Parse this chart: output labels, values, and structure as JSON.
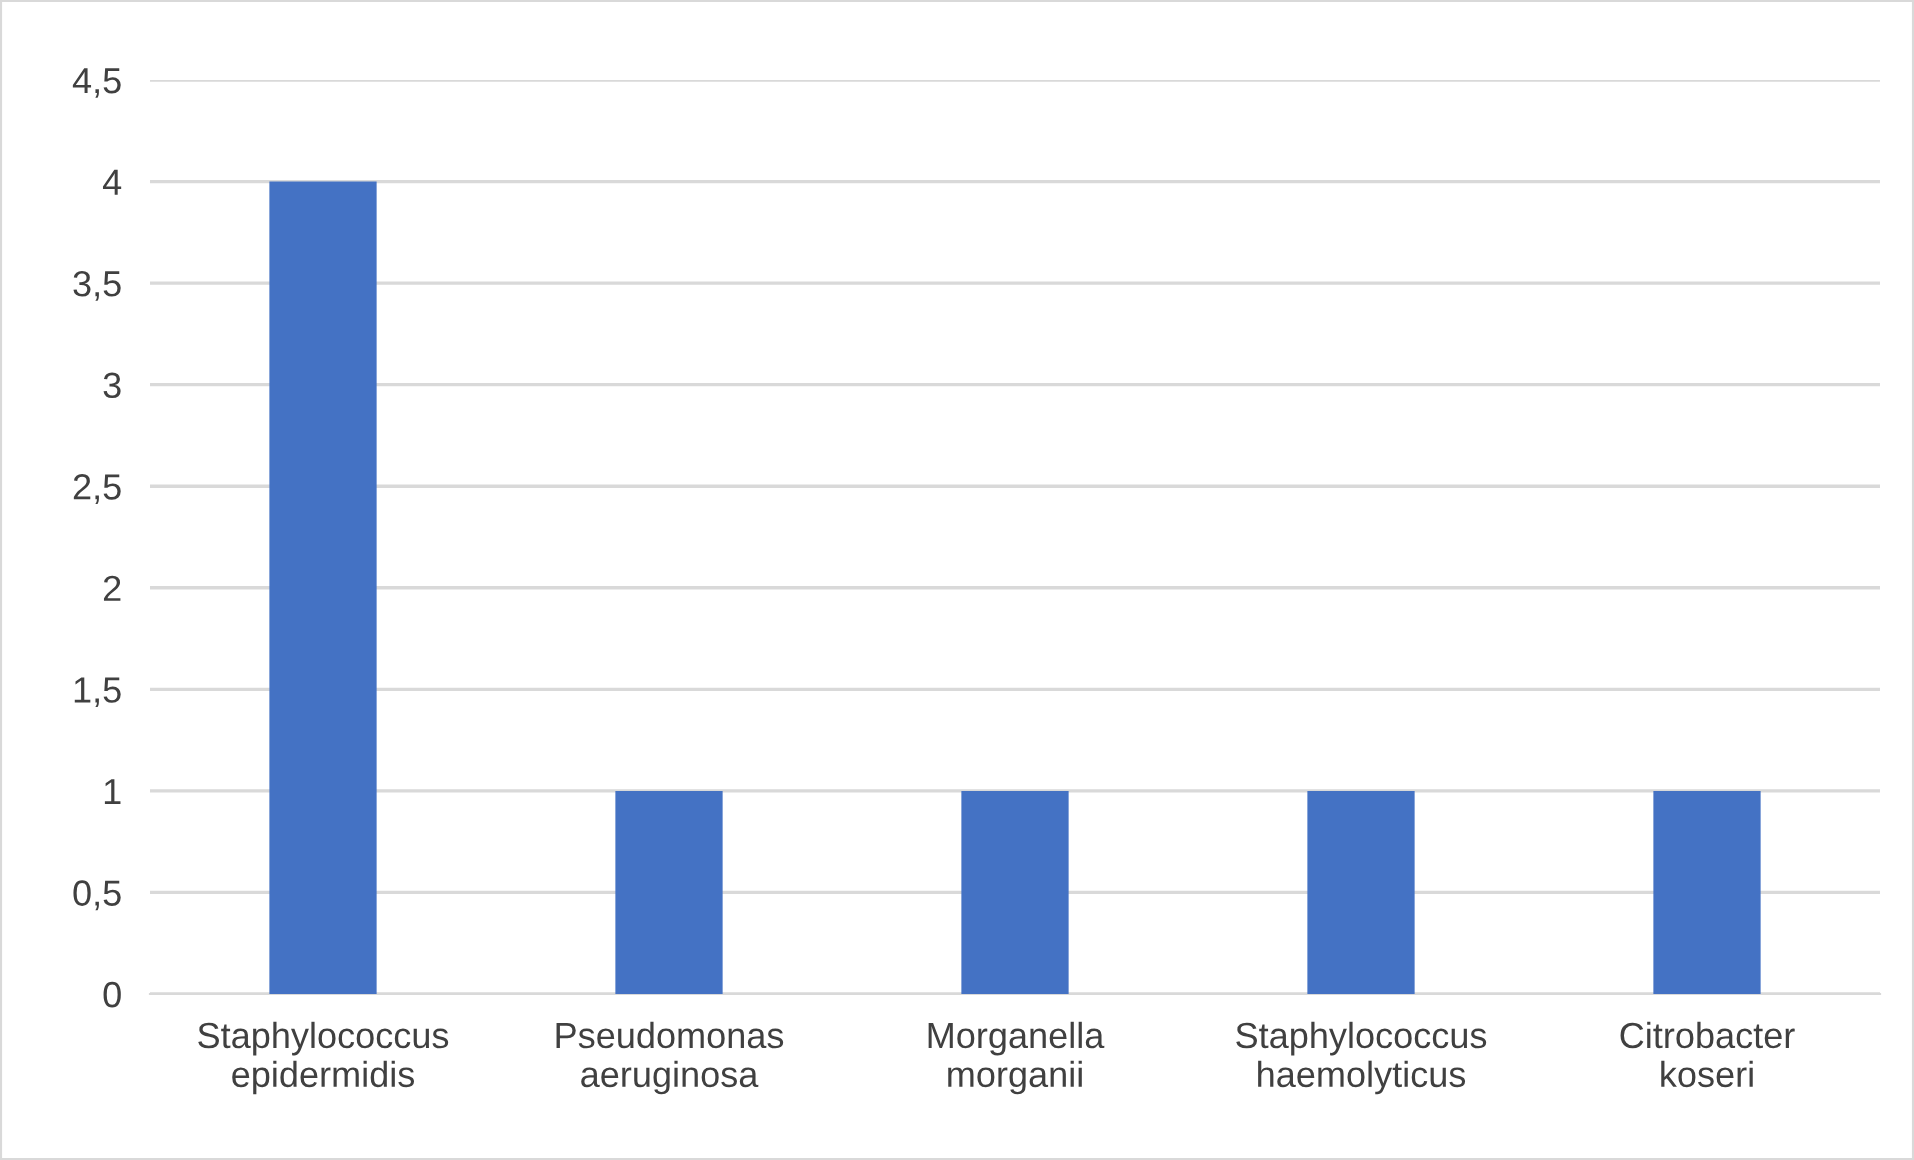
{
  "chart_data": {
    "type": "bar",
    "categories": [
      "Staphylococcus\nepidermidis",
      "Pseudomonas\naeruginosa",
      "Morganella\nmorganii",
      "Staphylococcus\nhaemolyticus",
      "Citrobacter\nkoseri"
    ],
    "values": [
      4,
      1,
      1,
      1,
      1
    ],
    "color": "#4472c4",
    "ylim": [
      0,
      4.5
    ],
    "yticks": [
      0,
      {
        "value": 0.5,
        "label": "0,5"
      },
      1,
      {
        "value": 1.5,
        "label": "1,5"
      },
      2,
      {
        "value": 2.5,
        "label": "2,5"
      },
      3,
      {
        "value": 3.5,
        "label": "3,5"
      },
      4,
      {
        "value": 4.5,
        "label": "4,5"
      }
    ],
    "grid": "y"
  }
}
